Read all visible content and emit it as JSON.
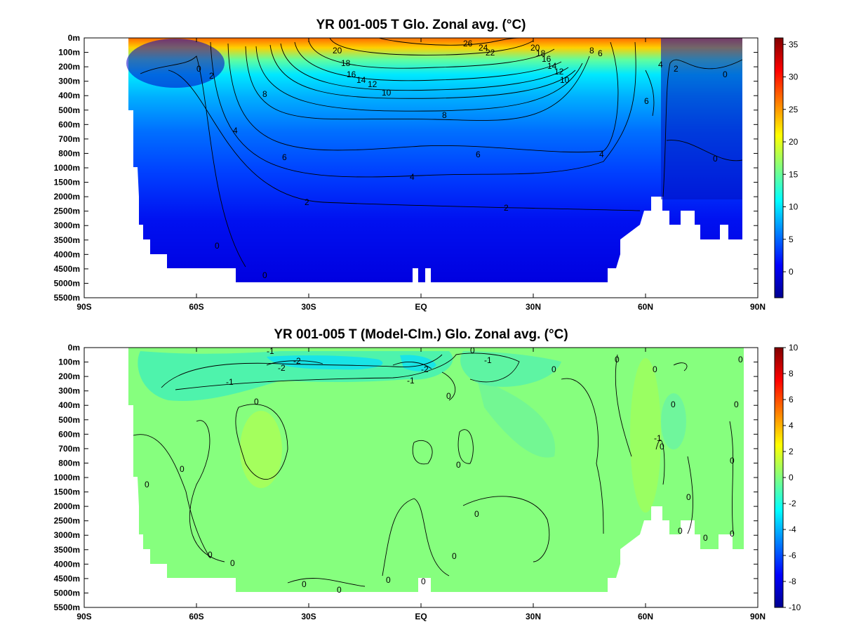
{
  "chart_data": [
    {
      "type": "heatmap",
      "title": "YR 001-005 T Glo. Zonal avg. (°C)",
      "xlabel": "",
      "ylabel": "",
      "x_ticks": [
        "90S",
        "60S",
        "30S",
        "EQ",
        "30N",
        "60N",
        "90N"
      ],
      "y_ticks": [
        "0m",
        "100m",
        "200m",
        "300m",
        "400m",
        "500m",
        "600m",
        "700m",
        "800m",
        "1000m",
        "1500m",
        "2000m",
        "2500m",
        "3000m",
        "3500m",
        "4000m",
        "4500m",
        "5000m",
        "5500m"
      ],
      "colorbar_ticks": [
        "35",
        "30",
        "25",
        "20",
        "15",
        "10",
        "5",
        "0"
      ],
      "colorbar_range": [
        -4,
        36
      ],
      "colormap": [
        "#00008f",
        "#0000ff",
        "#0080ff",
        "#00ffff",
        "#80ff80",
        "#ffff00",
        "#ff8000",
        "#ff0000",
        "#800000"
      ],
      "land_color": "#ffffff",
      "contour_labels": [
        "26",
        "24",
        "22",
        "20",
        "20",
        "18",
        "18",
        "16",
        "16",
        "14",
        "14",
        "12",
        "12",
        "10",
        "10",
        "8",
        "8",
        "8",
        "6",
        "6",
        "6",
        "6",
        "4",
        "4",
        "4",
        "4",
        "2",
        "2",
        "2",
        "2",
        "0",
        "0",
        "0",
        "0",
        "0"
      ]
    },
    {
      "type": "heatmap",
      "title": "YR 001-005 T (Model-Clm.) Glo. Zonal avg. (°C)",
      "xlabel": "",
      "ylabel": "",
      "x_ticks": [
        "90S",
        "60S",
        "30S",
        "EQ",
        "30N",
        "60N",
        "90N"
      ],
      "y_ticks": [
        "0m",
        "100m",
        "200m",
        "300m",
        "400m",
        "500m",
        "600m",
        "700m",
        "800m",
        "1000m",
        "1500m",
        "2000m",
        "2500m",
        "3000m",
        "3500m",
        "4000m",
        "4500m",
        "5000m",
        "5500m"
      ],
      "colorbar_ticks": [
        "10",
        "8",
        "6",
        "4",
        "2",
        "0",
        "-2",
        "-4",
        "-6",
        "-8",
        "-10"
      ],
      "colorbar_range": [
        -10,
        10
      ],
      "colormap": [
        "#00008f",
        "#0000ff",
        "#0080ff",
        "#00ffff",
        "#80ff80",
        "#ffff00",
        "#ff8000",
        "#ff0000",
        "#800000"
      ],
      "land_color": "#ffffff",
      "contour_labels": [
        "-1",
        "-2",
        "-2",
        "-2",
        "-1",
        "-1",
        "-1",
        "0",
        "0",
        "0",
        "0",
        "0",
        "0",
        "0",
        "0",
        "0",
        "0",
        "0",
        "0",
        "0",
        "0",
        "0",
        "0",
        "0",
        "0",
        "0",
        "0",
        "0",
        "0",
        "0",
        "0",
        "0",
        "0",
        "-1"
      ]
    }
  ]
}
